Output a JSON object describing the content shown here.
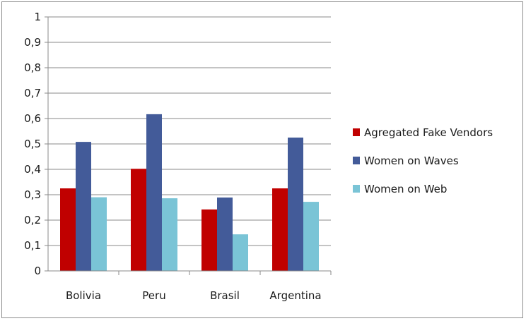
{
  "chart_data": {
    "type": "bar",
    "categories": [
      "Bolivia",
      "Peru",
      "Brasil",
      "Argentina"
    ],
    "series": [
      {
        "name": "Agregated Fake Vendors",
        "color": "#C00000",
        "values": [
          0.325,
          0.402,
          0.242,
          0.325
        ]
      },
      {
        "name": "Women on Waves",
        "color": "#435B99",
        "values": [
          0.508,
          0.617,
          0.289,
          0.525
        ]
      },
      {
        "name": "Women on Web",
        "color": "#7AC4D6",
        "values": [
          0.29,
          0.286,
          0.144,
          0.272
        ]
      }
    ],
    "yticks": [
      "0",
      "0,1",
      "0,2",
      "0,3",
      "0,4",
      "0,5",
      "0,6",
      "0,7",
      "0,8",
      "0,9",
      "1"
    ],
    "ylim": [
      0,
      1
    ],
    "grid": true,
    "legend_position": "right",
    "title": "",
    "xlabel": "",
    "ylabel": ""
  }
}
